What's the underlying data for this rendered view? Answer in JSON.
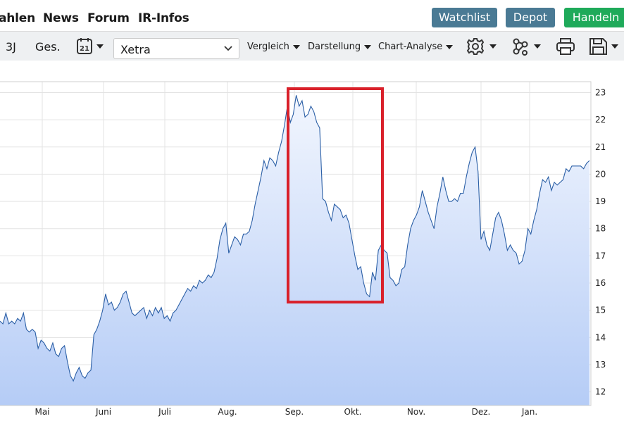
{
  "nav": {
    "links": [
      "ahlen",
      "News",
      "Forum",
      "IR-Infos"
    ],
    "buttons": [
      {
        "label": "Watchlist",
        "color": "#4a7a94"
      },
      {
        "label": "Depot",
        "color": "#4a7a94"
      },
      {
        "label": "Handeln",
        "color": "#1faa5a"
      }
    ]
  },
  "toolbar": {
    "range_3j": "3J",
    "range_ges": "Ges.",
    "calendar_icon": "calendar-icon",
    "calendar_day": "21",
    "exchange_value": "Xetra",
    "vergleich": "Vergleich",
    "darstellung": "Darstellung",
    "chart_analyse": "Chart-Analyse",
    "icons": [
      "gear-icon",
      "network-icon",
      "printer-icon",
      "save-icon"
    ]
  },
  "colors": {
    "line": "#2b5fa6",
    "fill_top": "#f2f6fe",
    "fill_bottom": "#b5ccf6",
    "highlight": "#d9202a"
  },
  "chart_data": {
    "type": "area",
    "title": "",
    "xlabel": "",
    "ylabel": "",
    "ylim": [
      11.5,
      23.4
    ],
    "y_ticks": [
      "23",
      "22",
      "21",
      "20",
      "19",
      "18",
      "17",
      "16",
      "15",
      "14",
      "13",
      "12"
    ],
    "x_ticks": [
      "Mai",
      "Juni",
      "Juli",
      "Aug.",
      "Sep.",
      "Okt.",
      "Nov.",
      "Dez.",
      "Jan."
    ],
    "grid": true,
    "highlight_range": {
      "from": "Sep.",
      "to": "Okt.",
      "y_from": 15.3,
      "y_to": 23.5
    },
    "series": [
      {
        "values": [
          14.6,
          14.5,
          14.9,
          14.5,
          14.6,
          14.5,
          14.7,
          14.6,
          14.9,
          14.3,
          14.2,
          14.3,
          14.2,
          13.6,
          13.9,
          13.8,
          13.6,
          13.5,
          13.8,
          13.4,
          13.3,
          13.6,
          13.7,
          13.1,
          12.6,
          12.4,
          12.7,
          12.9,
          12.6,
          12.5,
          12.7,
          12.8,
          14.1,
          14.3,
          14.6,
          15.0,
          15.6,
          15.2,
          15.3,
          15.0,
          15.1,
          15.3,
          15.6,
          15.7,
          15.3,
          14.9,
          14.8,
          14.9,
          15.0,
          15.1,
          14.7,
          15.0,
          14.8,
          15.1,
          14.9,
          15.1,
          14.7,
          14.8,
          14.6,
          14.9,
          15.0,
          15.2,
          15.4,
          15.6,
          15.8,
          15.7,
          15.9,
          15.8,
          16.1,
          16.0,
          16.1,
          16.3,
          16.2,
          16.4,
          16.9,
          17.6,
          18.0,
          18.2,
          17.1,
          17.4,
          17.7,
          17.6,
          17.4,
          17.8,
          17.8,
          17.9,
          18.3,
          18.9,
          19.4,
          19.9,
          20.5,
          20.2,
          20.6,
          20.5,
          20.3,
          20.8,
          21.2,
          21.8,
          22.5,
          21.9,
          22.2,
          22.9,
          22.5,
          22.7,
          22.1,
          22.2,
          22.5,
          22.3,
          21.9,
          21.7,
          19.1,
          19.0,
          18.6,
          18.3,
          18.9,
          18.8,
          18.7,
          18.4,
          18.5,
          18.2,
          17.6,
          17.0,
          16.5,
          16.6,
          16.0,
          15.6,
          15.5,
          16.4,
          16.1,
          17.2,
          17.4,
          17.2,
          17.1,
          16.2,
          16.1,
          15.9,
          16.0,
          16.5,
          16.6,
          17.4,
          18.0,
          18.3,
          18.5,
          18.8,
          19.4,
          19.0,
          18.6,
          18.3,
          18.0,
          18.8,
          19.3,
          19.9,
          19.4,
          19.0,
          19.0,
          19.1,
          19.0,
          19.3,
          19.3,
          19.9,
          20.4,
          20.8,
          21.0,
          20.1,
          17.6,
          17.9,
          17.4,
          17.2,
          17.8,
          18.4,
          18.6,
          18.3,
          17.8,
          17.2,
          17.4,
          17.2,
          17.1,
          16.7,
          16.8,
          17.2,
          18.0,
          17.8,
          18.3,
          18.7,
          19.3,
          19.8,
          19.7,
          19.9,
          19.4,
          19.7,
          19.6,
          19.7,
          19.8,
          20.2,
          20.1,
          20.3,
          20.3,
          20.3,
          20.3,
          20.2,
          20.4,
          20.5
        ]
      }
    ]
  }
}
